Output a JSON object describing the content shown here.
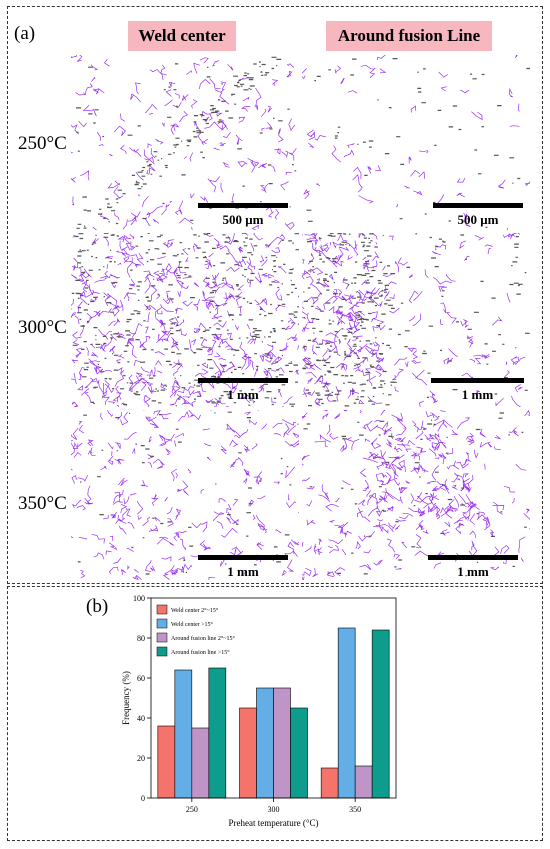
{
  "panel_a": {
    "label": "(a)",
    "col_headers": [
      "Weld center",
      "Around fusion Line"
    ],
    "rows": [
      {
        "label": "250°C",
        "scale": [
          "500 μm",
          "500 μm"
        ]
      },
      {
        "label": "300°C",
        "scale": [
          "1 mm",
          "1 mm"
        ]
      },
      {
        "label": "350°C",
        "scale": [
          "1 mm",
          "1 mm"
        ]
      }
    ]
  },
  "panel_b": {
    "label": "(b)"
  },
  "colors": {
    "weld_center_low": "#f4736b",
    "weld_center_high": "#63aee6",
    "fusion_low": "#bf95c8",
    "fusion_high": "#0e9c8c",
    "grain_boundary": "#9b30f0",
    "dark_phase": "#555555"
  },
  "chart_data": {
    "type": "bar",
    "categories": [
      "250",
      "300",
      "350"
    ],
    "xlabel": "Preheat temperature (°C)",
    "ylabel": "Frequency (%)",
    "ylim": [
      0,
      100
    ],
    "yticks": [
      0,
      20,
      40,
      60,
      80,
      100
    ],
    "legend_position": "top-left",
    "series": [
      {
        "name": "Weld center 2°~15°",
        "values": [
          36,
          45,
          15
        ],
        "color": "#f4736b"
      },
      {
        "name": "Weld center >15°",
        "values": [
          64,
          55,
          85
        ],
        "color": "#63aee6"
      },
      {
        "name": "Around fusion line 2°~15°",
        "values": [
          35,
          55,
          16
        ],
        "color": "#bf95c8"
      },
      {
        "name": "Around fusion line >15°",
        "values": [
          65,
          45,
          84
        ],
        "color": "#0e9c8c"
      }
    ]
  }
}
